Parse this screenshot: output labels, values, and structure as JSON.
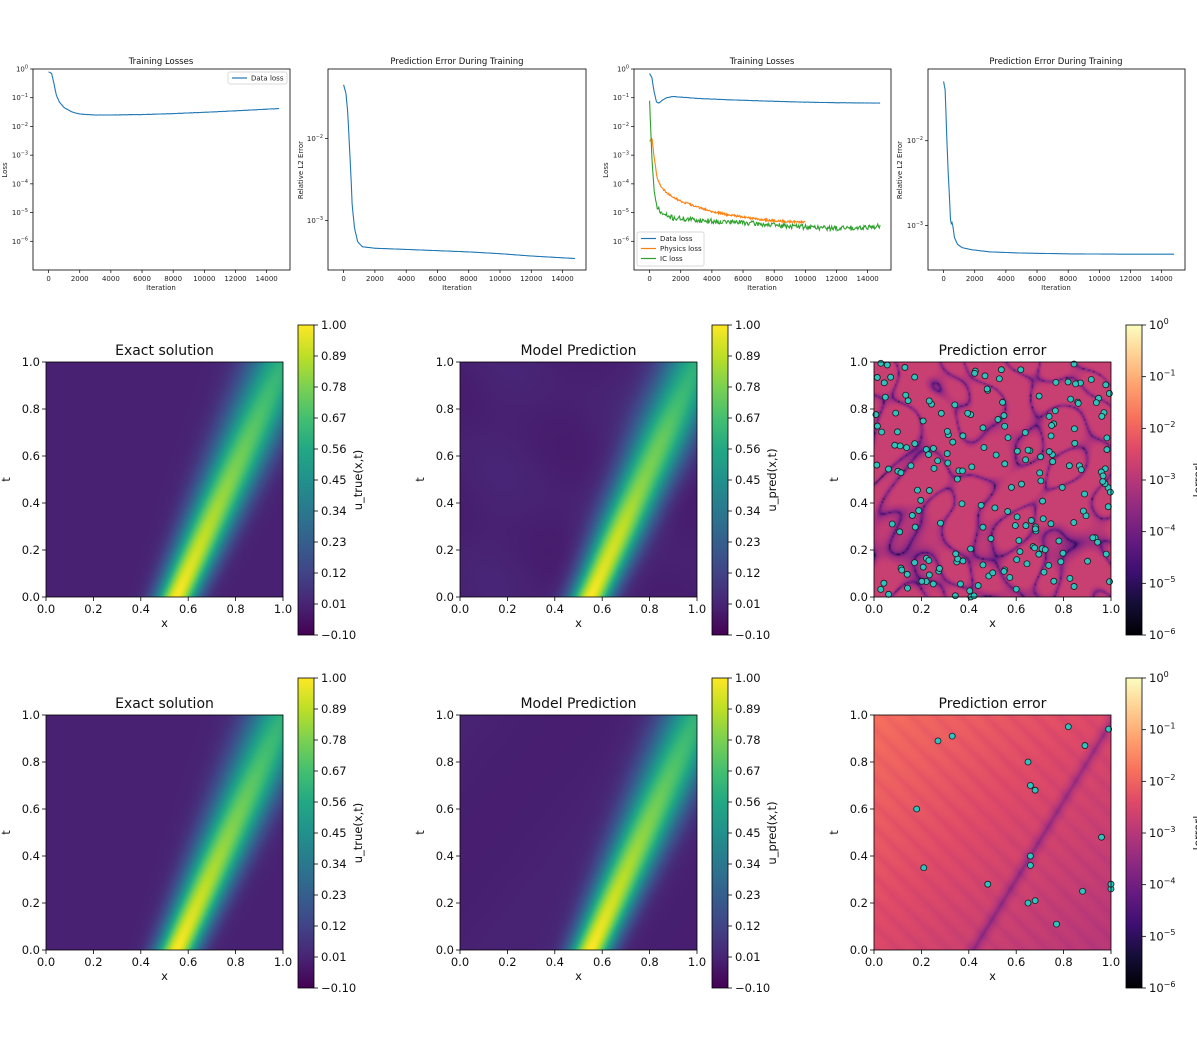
{
  "colors": {
    "c0": "#1f77b4",
    "c1": "#ff7f0e",
    "c2": "#2ca02c",
    "scatter_fill": "#2ec4c0",
    "scatter_edge": "#1a1a1a"
  },
  "chart_data": [
    {
      "type": "line",
      "title": "Training Losses",
      "xlabel": "Iteration",
      "ylabel": "Loss",
      "yscale": "log",
      "xlim": [
        -1000,
        15500
      ],
      "ylim": [
        1e-07,
        1
      ],
      "xticks": [
        0,
        2000,
        4000,
        6000,
        8000,
        10000,
        12000,
        14000
      ],
      "xtick_labels": [
        "0",
        "2000",
        "4000",
        "6000",
        "8000",
        "10000",
        "12000",
        "14000"
      ],
      "yticks": [
        1e-06,
        1e-05,
        0.0001,
        0.001,
        0.01,
        0.1,
        1
      ],
      "ytick_labels": [
        {
          "b": "10",
          "e": "−6"
        },
        {
          "b": "10",
          "e": "−5"
        },
        {
          "b": "10",
          "e": "−4"
        },
        {
          "b": "10",
          "e": "−3"
        },
        {
          "b": "10",
          "e": "−2"
        },
        {
          "b": "10",
          "e": "−1"
        },
        {
          "b": "10",
          "e": "0"
        }
      ],
      "legend": "top-right",
      "series": [
        {
          "name": "Data loss",
          "color": "#1f77b4",
          "noise": 0.01,
          "x": [
            0,
            200,
            350,
            500,
            700,
            1000,
            1500,
            2000,
            3000,
            4000,
            6000,
            8000,
            10000,
            12000,
            14800
          ],
          "y": [
            0.8,
            0.7,
            0.3,
            0.12,
            0.07,
            0.045,
            0.032,
            0.027,
            0.025,
            0.025,
            0.026,
            0.028,
            0.031,
            0.035,
            0.042
          ]
        }
      ]
    },
    {
      "type": "line",
      "title": "Prediction Error During Training",
      "xlabel": "Iteration",
      "ylabel": "Relative L2 Error",
      "yscale": "log",
      "xlim": [
        -1000,
        15500
      ],
      "ylim": [
        0.00025,
        0.07
      ],
      "xticks": [
        0,
        2000,
        4000,
        6000,
        8000,
        10000,
        12000,
        14000
      ],
      "xtick_labels": [
        "0",
        "2000",
        "4000",
        "6000",
        "8000",
        "10000",
        "12000",
        "14000"
      ],
      "yticks": [
        0.001,
        0.01
      ],
      "ytick_labels": [
        {
          "b": "10",
          "e": "−3"
        },
        {
          "b": "10",
          "e": "−2"
        }
      ],
      "series": [
        {
          "name": "Relative L2 Error",
          "color": "#1f77b4",
          "noise": 0,
          "x": [
            0,
            150,
            250,
            350,
            450,
            550,
            700,
            900,
            1200,
            2000,
            4000,
            6000,
            8000,
            10000,
            12000,
            14800
          ],
          "y": [
            0.045,
            0.035,
            0.022,
            0.01,
            0.004,
            0.0015,
            0.0008,
            0.00055,
            0.00048,
            0.00046,
            0.000445,
            0.00043,
            0.000415,
            0.000395,
            0.00037,
            0.000345
          ]
        }
      ]
    },
    {
      "type": "line",
      "title": "Training Losses",
      "xlabel": "Iteration",
      "ylabel": "Loss",
      "yscale": "log",
      "xlim": [
        -1000,
        15500
      ],
      "ylim": [
        1e-07,
        1
      ],
      "xticks": [
        0,
        2000,
        4000,
        6000,
        8000,
        10000,
        12000,
        14000
      ],
      "xtick_labels": [
        "0",
        "2000",
        "4000",
        "6000",
        "8000",
        "10000",
        "12000",
        "14000"
      ],
      "yticks": [
        1e-06,
        1e-05,
        0.0001,
        0.001,
        0.01,
        0.1,
        1
      ],
      "ytick_labels": [
        {
          "b": "10",
          "e": "−6"
        },
        {
          "b": "10",
          "e": "−5"
        },
        {
          "b": "10",
          "e": "−4"
        },
        {
          "b": "10",
          "e": "−3"
        },
        {
          "b": "10",
          "e": "−2"
        },
        {
          "b": "10",
          "e": "−1"
        },
        {
          "b": "10",
          "e": "0"
        }
      ],
      "legend": "bottom-left",
      "series": [
        {
          "name": "Data loss",
          "color": "#1f77b4",
          "noise": 0.01,
          "x": [
            0,
            150,
            300,
            450,
            600,
            800,
            1100,
            1500,
            2000,
            3000,
            5000,
            8000,
            10000,
            12000,
            14800
          ],
          "y": [
            0.7,
            0.5,
            0.15,
            0.07,
            0.065,
            0.08,
            0.1,
            0.11,
            0.105,
            0.095,
            0.085,
            0.075,
            0.07,
            0.067,
            0.065
          ]
        },
        {
          "name": "Physics loss",
          "color": "#ff7f0e",
          "noise": 0.08,
          "x": [
            0,
            150,
            300,
            500,
            800,
            1200,
            2000,
            3000,
            4000,
            5000,
            6000,
            7000,
            8000,
            9000,
            10000
          ],
          "y": [
            0.003,
            0.004,
            0.0008,
            0.00015,
            7e-05,
            4.5e-05,
            2.5e-05,
            1.6e-05,
            1.1e-05,
            8.5e-06,
            7e-06,
            5.8e-06,
            5.2e-06,
            4.8e-06,
            4.6e-06
          ]
        },
        {
          "name": "IC loss",
          "color": "#2ca02c",
          "noise": 0.2,
          "x": [
            0,
            150,
            300,
            450,
            650,
            900,
            1500,
            2500,
            4000,
            6000,
            8000,
            10000,
            12000,
            14800
          ],
          "y": [
            0.08,
            0.0008,
            5e-05,
            1.8e-05,
            1.1e-05,
            8.5e-06,
            6.5e-06,
            5.8e-06,
            5e-06,
            4.5e-06,
            3.6e-06,
            3.2e-06,
            2.8e-06,
            3.3e-06
          ]
        }
      ]
    },
    {
      "type": "line",
      "title": "Prediction Error During Training",
      "xlabel": "Iteration",
      "ylabel": "Relative L2 Error",
      "yscale": "log",
      "xlim": [
        -1000,
        15500
      ],
      "ylim": [
        0.0003,
        0.07
      ],
      "xticks": [
        0,
        2000,
        4000,
        6000,
        8000,
        10000,
        12000,
        14000
      ],
      "xtick_labels": [
        "0",
        "2000",
        "4000",
        "6000",
        "8000",
        "10000",
        "12000",
        "14000"
      ],
      "yticks": [
        0.001,
        0.01
      ],
      "ytick_labels": [
        {
          "b": "10",
          "e": "−3"
        },
        {
          "b": "10",
          "e": "−2"
        }
      ],
      "series": [
        {
          "name": "Relative L2 Error",
          "color": "#1f77b4",
          "noise": 0,
          "x": [
            0,
            100,
            200,
            300,
            400,
            450,
            500,
            550,
            600,
            700,
            900,
            1200,
            1800,
            3000,
            5000,
            8000,
            12000,
            14800
          ],
          "y": [
            0.05,
            0.04,
            0.012,
            0.004,
            0.0018,
            0.0011,
            0.00105,
            0.0011,
            0.00098,
            0.00072,
            0.0006,
            0.00055,
            0.00052,
            0.00049,
            0.000475,
            0.000465,
            0.00046,
            0.00046
          ]
        }
      ]
    },
    {
      "type": "heatmap",
      "title": "Exact solution",
      "xlabel": "x",
      "ylabel": "t",
      "field": "u_true",
      "colormap": "viridis",
      "xlim": [
        0,
        1
      ],
      "ylim": [
        0,
        1
      ],
      "xticks": [
        0,
        0.2,
        0.4,
        0.6,
        0.8,
        1.0
      ],
      "xtick_labels": [
        "0.0",
        "0.2",
        "0.4",
        "0.6",
        "0.8",
        "1.0"
      ],
      "yticks": [
        0,
        0.2,
        0.4,
        0.6,
        0.8,
        1.0
      ],
      "ytick_labels": [
        "0.0",
        "0.2",
        "0.4",
        "0.6",
        "0.8",
        "1.0"
      ],
      "colorbar_label": "u_true(x,t)",
      "colorbar_range": [
        -0.1,
        1.0
      ],
      "colorbar_ticks": [
        "−0.10",
        "0.01",
        "0.12",
        "0.23",
        "0.34",
        "0.45",
        "0.56",
        "0.67",
        "0.78",
        "0.89",
        "1.00"
      ]
    },
    {
      "type": "heatmap",
      "title": "Model Prediction",
      "xlabel": "x",
      "ylabel": "t",
      "field": "u_pred",
      "colormap": "viridis",
      "xlim": [
        0,
        1
      ],
      "ylim": [
        0,
        1
      ],
      "xticks": [
        0,
        0.2,
        0.4,
        0.6,
        0.8,
        1.0
      ],
      "xtick_labels": [
        "0.0",
        "0.2",
        "0.4",
        "0.6",
        "0.8",
        "1.0"
      ],
      "yticks": [
        0,
        0.2,
        0.4,
        0.6,
        0.8,
        1.0
      ],
      "ytick_labels": [
        "0.0",
        "0.2",
        "0.4",
        "0.6",
        "0.8",
        "1.0"
      ],
      "colorbar_label": "u_pred(x,t)",
      "colorbar_range": [
        -0.1,
        1.0
      ],
      "colorbar_ticks": [
        "−0.10",
        "0.01",
        "0.12",
        "0.23",
        "0.34",
        "0.45",
        "0.56",
        "0.67",
        "0.78",
        "0.89",
        "1.00"
      ]
    },
    {
      "type": "heatmap",
      "title": "Prediction error",
      "xlabel": "x",
      "ylabel": "t",
      "field": "error_many",
      "colormap": "magma",
      "scale": "log",
      "xlim": [
        0,
        1
      ],
      "ylim": [
        0,
        1
      ],
      "xticks": [
        0,
        0.2,
        0.4,
        0.6,
        0.8,
        1.0
      ],
      "xtick_labels": [
        "0.0",
        "0.2",
        "0.4",
        "0.6",
        "0.8",
        "1.0"
      ],
      "yticks": [
        0,
        0.2,
        0.4,
        0.6,
        0.8,
        1.0
      ],
      "ytick_labels": [
        "0.0",
        "0.2",
        "0.4",
        "0.6",
        "0.8",
        "1.0"
      ],
      "colorbar_label": "|error|",
      "colorbar_range": [
        1e-06,
        1
      ],
      "colorbar_ticks": [
        {
          "b": "10",
          "e": "−6"
        },
        {
          "b": "10",
          "e": "−5"
        },
        {
          "b": "10",
          "e": "−4"
        },
        {
          "b": "10",
          "e": "−3"
        },
        {
          "b": "10",
          "e": "−2"
        },
        {
          "b": "10",
          "e": "−1"
        },
        {
          "b": "10",
          "e": "0"
        }
      ],
      "scatter_count": 200,
      "scatter_seed": 17
    },
    {
      "type": "heatmap",
      "title": "Exact solution",
      "xlabel": "x",
      "ylabel": "t",
      "field": "u_true",
      "colormap": "viridis",
      "xlim": [
        0,
        1
      ],
      "ylim": [
        0,
        1
      ],
      "xticks": [
        0,
        0.2,
        0.4,
        0.6,
        0.8,
        1.0
      ],
      "xtick_labels": [
        "0.0",
        "0.2",
        "0.4",
        "0.6",
        "0.8",
        "1.0"
      ],
      "yticks": [
        0,
        0.2,
        0.4,
        0.6,
        0.8,
        1.0
      ],
      "ytick_labels": [
        "0.0",
        "0.2",
        "0.4",
        "0.6",
        "0.8",
        "1.0"
      ],
      "colorbar_label": "u_true(x,t)",
      "colorbar_range": [
        -0.1,
        1.0
      ],
      "colorbar_ticks": [
        "−0.10",
        "0.01",
        "0.12",
        "0.23",
        "0.34",
        "0.45",
        "0.56",
        "0.67",
        "0.78",
        "0.89",
        "1.00"
      ]
    },
    {
      "type": "heatmap",
      "title": "Model Prediction",
      "xlabel": "x",
      "ylabel": "t",
      "field": "u_pred2",
      "colormap": "viridis",
      "xlim": [
        0,
        1
      ],
      "ylim": [
        0,
        1
      ],
      "xticks": [
        0,
        0.2,
        0.4,
        0.6,
        0.8,
        1.0
      ],
      "xtick_labels": [
        "0.0",
        "0.2",
        "0.4",
        "0.6",
        "0.8",
        "1.0"
      ],
      "yticks": [
        0,
        0.2,
        0.4,
        0.6,
        0.8,
        1.0
      ],
      "ytick_labels": [
        "0.0",
        "0.2",
        "0.4",
        "0.6",
        "0.8",
        "1.0"
      ],
      "colorbar_label": "u_pred(x,t)",
      "colorbar_range": [
        -0.1,
        1.0
      ],
      "colorbar_ticks": [
        "−0.10",
        "0.01",
        "0.12",
        "0.23",
        "0.34",
        "0.45",
        "0.56",
        "0.67",
        "0.78",
        "0.89",
        "1.00"
      ]
    },
    {
      "type": "heatmap",
      "title": "Prediction error",
      "xlabel": "x",
      "ylabel": "t",
      "field": "error_few",
      "colormap": "magma",
      "scale": "log",
      "xlim": [
        0,
        1
      ],
      "ylim": [
        0,
        1
      ],
      "xticks": [
        0,
        0.2,
        0.4,
        0.6,
        0.8,
        1.0
      ],
      "xtick_labels": [
        "0.0",
        "0.2",
        "0.4",
        "0.6",
        "0.8",
        "1.0"
      ],
      "yticks": [
        0,
        0.2,
        0.4,
        0.6,
        0.8,
        1.0
      ],
      "ytick_labels": [
        "0.0",
        "0.2",
        "0.4",
        "0.6",
        "0.8",
        "1.0"
      ],
      "colorbar_label": "|error|",
      "colorbar_range": [
        1e-06,
        1
      ],
      "colorbar_ticks": [
        {
          "b": "10",
          "e": "−6"
        },
        {
          "b": "10",
          "e": "−5"
        },
        {
          "b": "10",
          "e": "−4"
        },
        {
          "b": "10",
          "e": "−3"
        },
        {
          "b": "10",
          "e": "−2"
        },
        {
          "b": "10",
          "e": "−1"
        },
        {
          "b": "10",
          "e": "0"
        }
      ],
      "scatter_points": [
        [
          0.27,
          0.89
        ],
        [
          0.33,
          0.91
        ],
        [
          0.82,
          0.95
        ],
        [
          0.99,
          0.94
        ],
        [
          0.89,
          0.87
        ],
        [
          0.65,
          0.8
        ],
        [
          0.18,
          0.6
        ],
        [
          0.66,
          0.7
        ],
        [
          0.68,
          0.68
        ],
        [
          0.21,
          0.35
        ],
        [
          0.48,
          0.28
        ],
        [
          0.66,
          0.4
        ],
        [
          0.66,
          0.36
        ],
        [
          0.96,
          0.48
        ],
        [
          0.65,
          0.2
        ],
        [
          0.68,
          0.21
        ],
        [
          0.88,
          0.25
        ],
        [
          1.0,
          0.26
        ],
        [
          1.0,
          0.28
        ],
        [
          0.77,
          0.11
        ]
      ]
    }
  ]
}
